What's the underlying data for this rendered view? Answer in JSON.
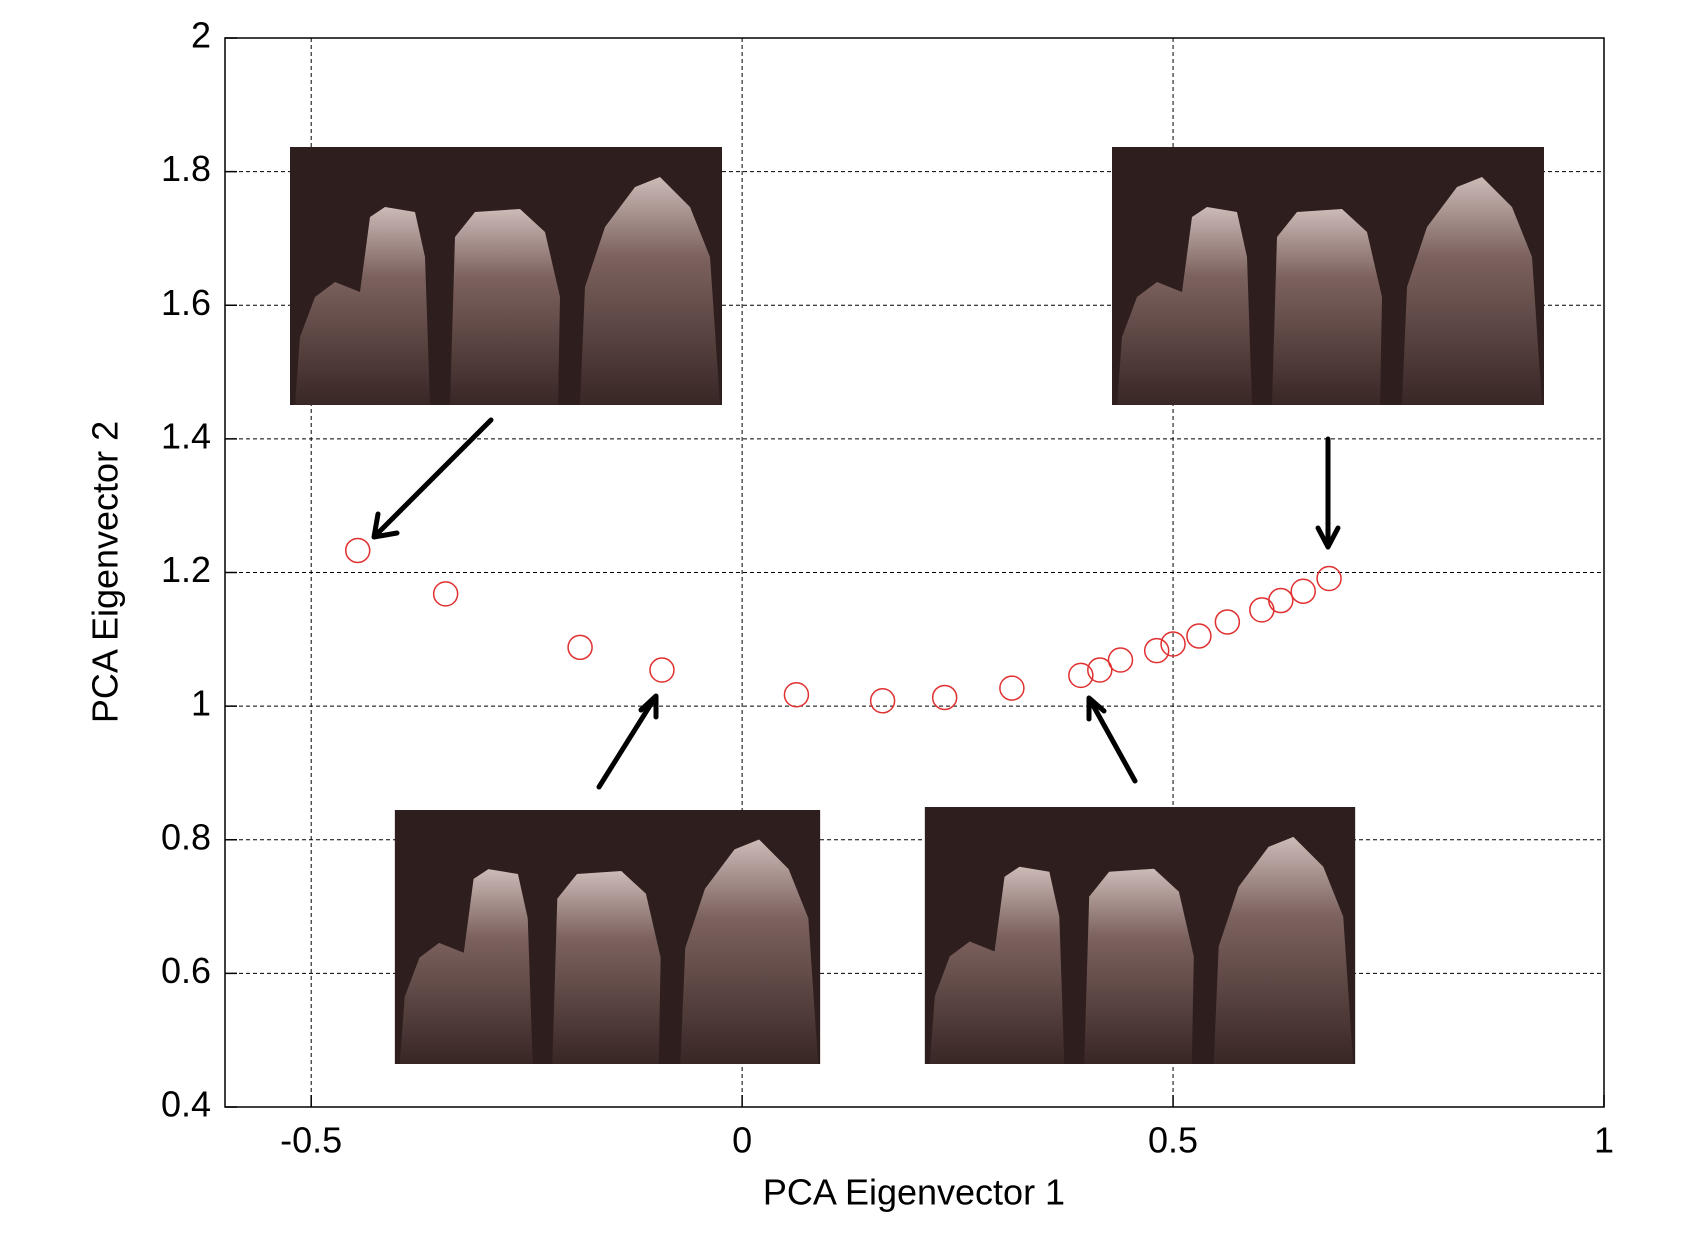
{
  "chart_data": {
    "type": "scatter",
    "x_label": "PCA Eigenvector 1",
    "y_label": "PCA Eigenvector 2",
    "x": [
      -0.446,
      -0.344,
      -0.188,
      -0.093,
      0.063,
      0.163,
      0.235,
      0.313,
      0.393,
      0.415,
      0.439,
      0.481,
      0.5,
      0.53,
      0.563,
      0.603,
      0.625,
      0.651,
      0.681
    ],
    "values": [
      1.233,
      1.168,
      1.088,
      1.054,
      1.017,
      1.008,
      1.013,
      1.027,
      1.046,
      1.054,
      1.069,
      1.083,
      1.093,
      1.105,
      1.126,
      1.144,
      1.158,
      1.172,
      1.191
    ],
    "color": "#e03030",
    "xlim": [
      -0.6,
      1
    ],
    "ylim": [
      0.4,
      2
    ],
    "xticks": [
      -0.5,
      0,
      0.5,
      1
    ],
    "yticks": [
      0.4,
      0.6,
      0.8,
      1,
      1.2,
      1.4,
      1.6,
      1.8,
      2
    ],
    "grid": true
  }
}
